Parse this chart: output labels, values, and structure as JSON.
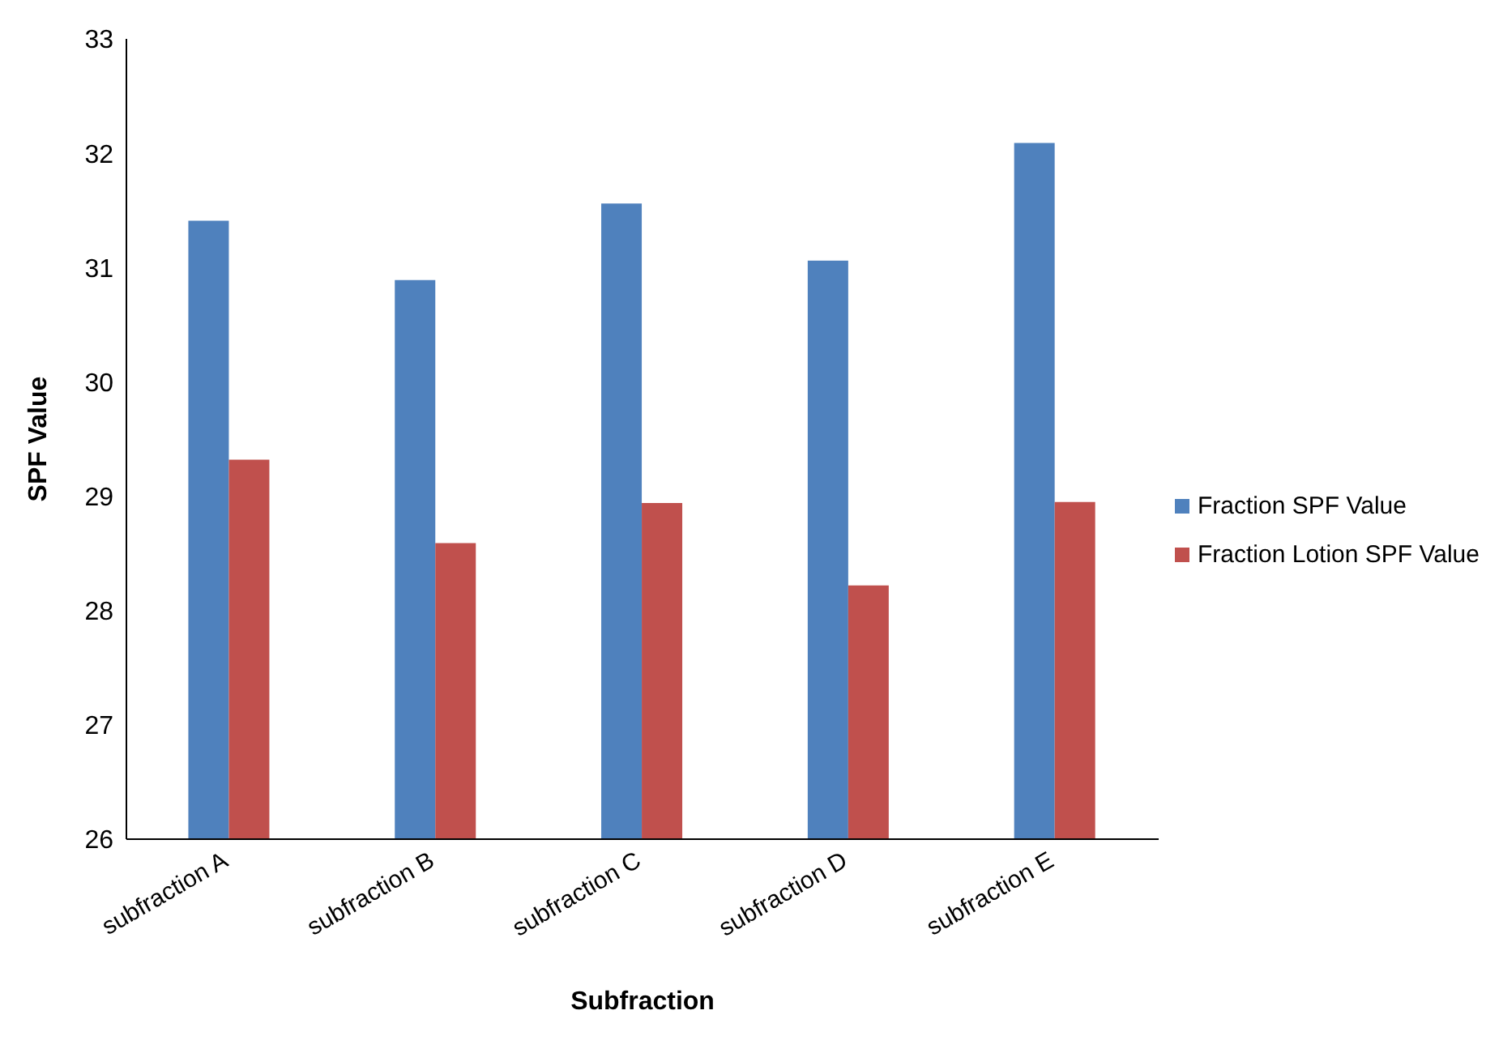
{
  "chart_data": {
    "type": "bar",
    "xlabel": "Subfraction",
    "ylabel": "SPF Value",
    "categories": [
      "subfraction A",
      "subfraction B",
      "subfraction C",
      "subfraction D",
      "subfraction E"
    ],
    "series": [
      {
        "name": "Fraction SPF Value",
        "color": "#4f81bd",
        "values": [
          31.41,
          30.89,
          31.56,
          31.06,
          32.09
        ]
      },
      {
        "name": "Fraction Lotion SPF Value",
        "color": "#c0504d",
        "values": [
          29.32,
          28.59,
          28.94,
          28.22,
          28.95
        ]
      }
    ],
    "ylim": [
      26,
      33
    ],
    "yticks": [
      26,
      27,
      28,
      29,
      30,
      31,
      32,
      33
    ],
    "grid": false,
    "legend": "right"
  }
}
